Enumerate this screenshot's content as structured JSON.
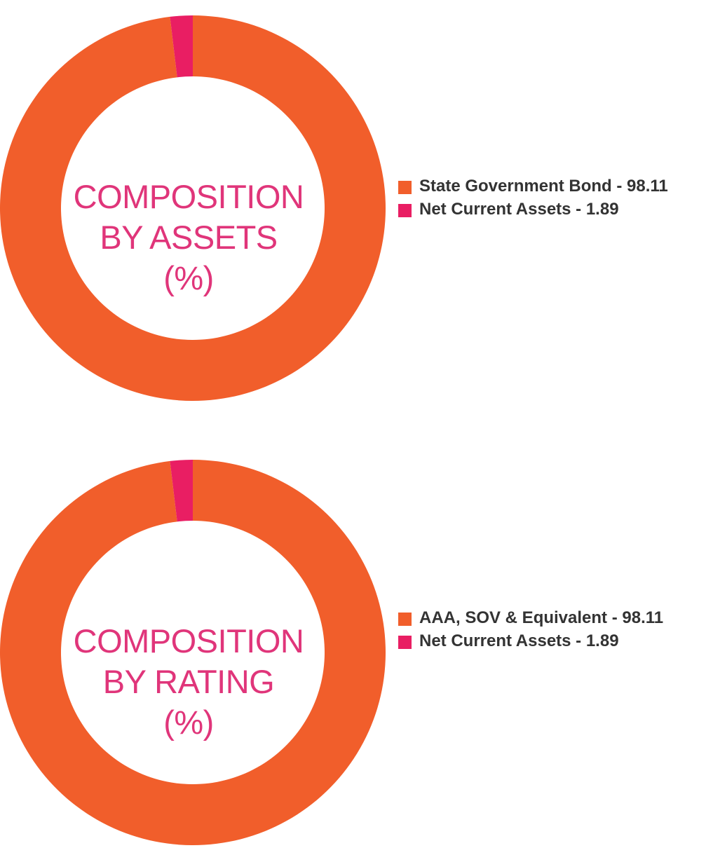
{
  "colors": {
    "orange": "#f15e2b",
    "pink": "#e91e63",
    "label_pink": "#e0357a",
    "legend_text": "#333333"
  },
  "charts": [
    {
      "center_lines": [
        "COMPOSITION",
        "BY ASSETS",
        "(%)"
      ],
      "legend": [
        {
          "label": "State Government Bond - 98.11",
          "color": "#f15e2b"
        },
        {
          "label": "Net Current Assets - 1.89",
          "color": "#e91e63"
        }
      ]
    },
    {
      "center_lines": [
        "COMPOSITION",
        "BY RATING",
        "(%)"
      ],
      "legend": [
        {
          "label": "AAA, SOV & Equivalent - 98.11",
          "color": "#f15e2b"
        },
        {
          "label": "Net Current Assets - 1.89",
          "color": "#e91e63"
        }
      ]
    }
  ],
  "chart_data": [
    {
      "type": "pie",
      "categories": [
        "State Government Bond",
        "Net Current Assets"
      ],
      "values": [
        98.11,
        1.89
      ],
      "title": "COMPOSITION BY ASSETS (%)",
      "legend_position": "right"
    },
    {
      "type": "pie",
      "categories": [
        "AAA, SOV & Equivalent",
        "Net Current Assets"
      ],
      "values": [
        98.11,
        1.89
      ],
      "title": "COMPOSITION BY RATING (%)",
      "legend_position": "right"
    }
  ]
}
